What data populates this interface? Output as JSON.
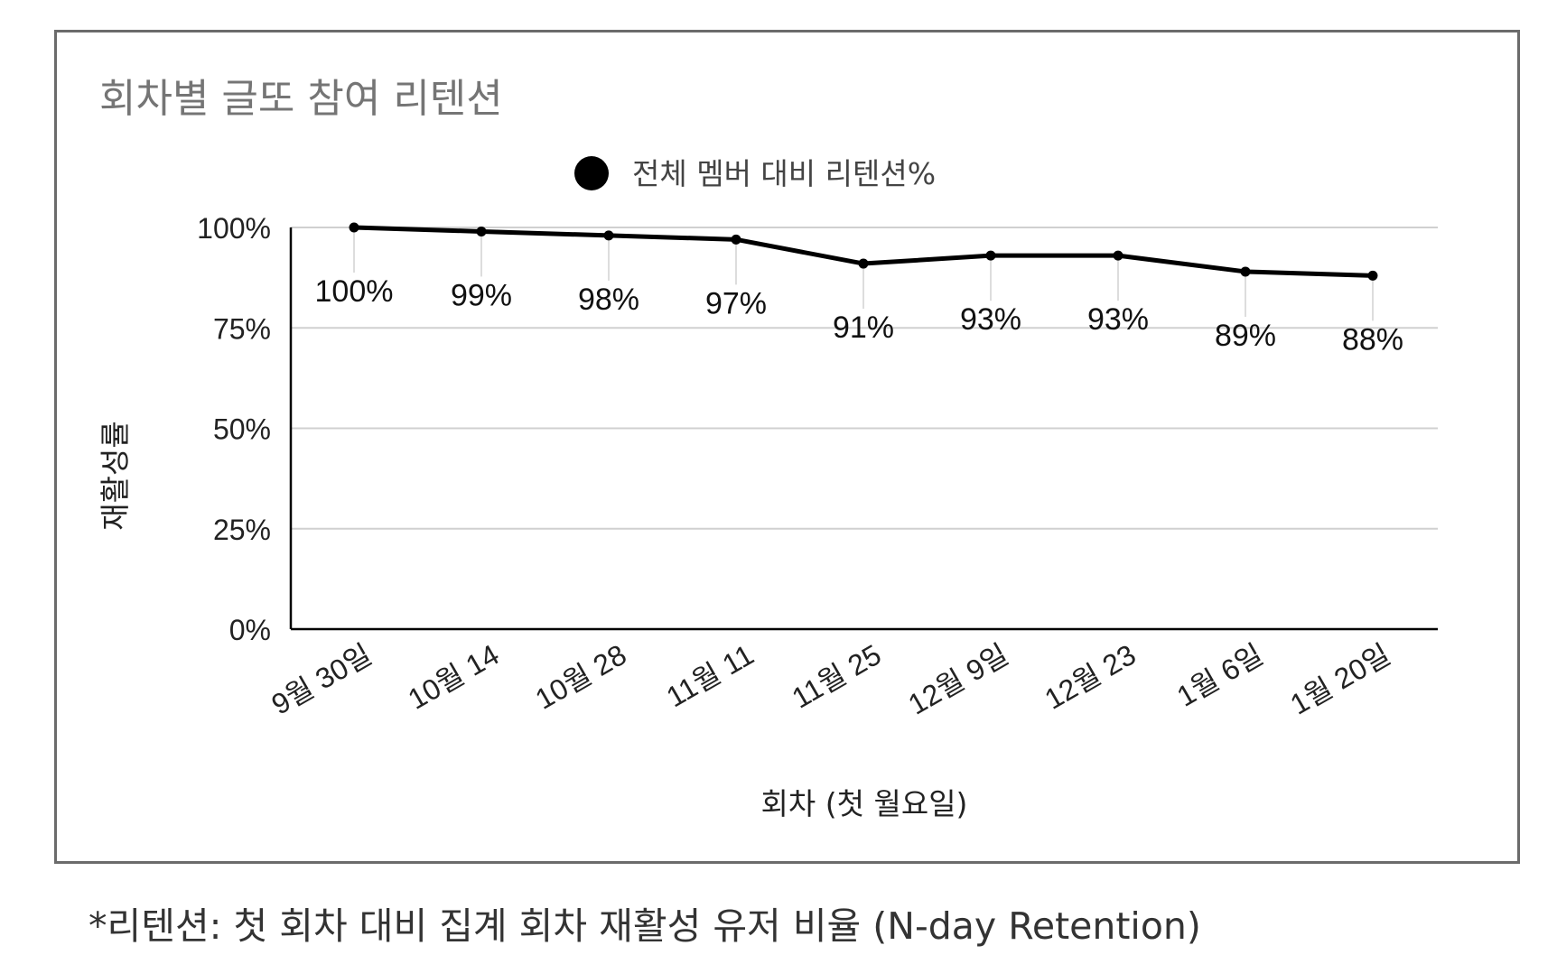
{
  "chart_data": {
    "type": "line",
    "title": "회차별 글또 참여 리텐션",
    "xlabel": "회차 (첫 월요일)",
    "ylabel": "재활성률",
    "categories": [
      "9월 30일",
      "10월 14",
      "10월 28",
      "11월 11",
      "11월 25",
      "12월 9일",
      "12월 23",
      "1월 6일",
      "1월 20일"
    ],
    "series": [
      {
        "name": "전체 멤버 대비 리텐션%",
        "values": [
          100,
          99,
          98,
          97,
          91,
          93,
          93,
          89,
          88
        ],
        "labels": [
          "100%",
          "99%",
          "98%",
          "97%",
          "91%",
          "93%",
          "93%",
          "89%",
          "88%"
        ],
        "color": "#000000"
      }
    ],
    "y_ticks": [
      {
        "value": 0,
        "label": "0%"
      },
      {
        "value": 25,
        "label": "25%"
      },
      {
        "value": 50,
        "label": "50%"
      },
      {
        "value": 75,
        "label": "75%"
      },
      {
        "value": 100,
        "label": "100%"
      }
    ],
    "ylim": [
      0,
      100
    ],
    "grid": true,
    "legend_position": "top-center",
    "gridline_color": "#d0d0d0",
    "axis_color": "#000000"
  },
  "footnote": "*리텐션: 첫 회차 대비 집계 회차 재활성 유저 비율 (N-day Retention)"
}
